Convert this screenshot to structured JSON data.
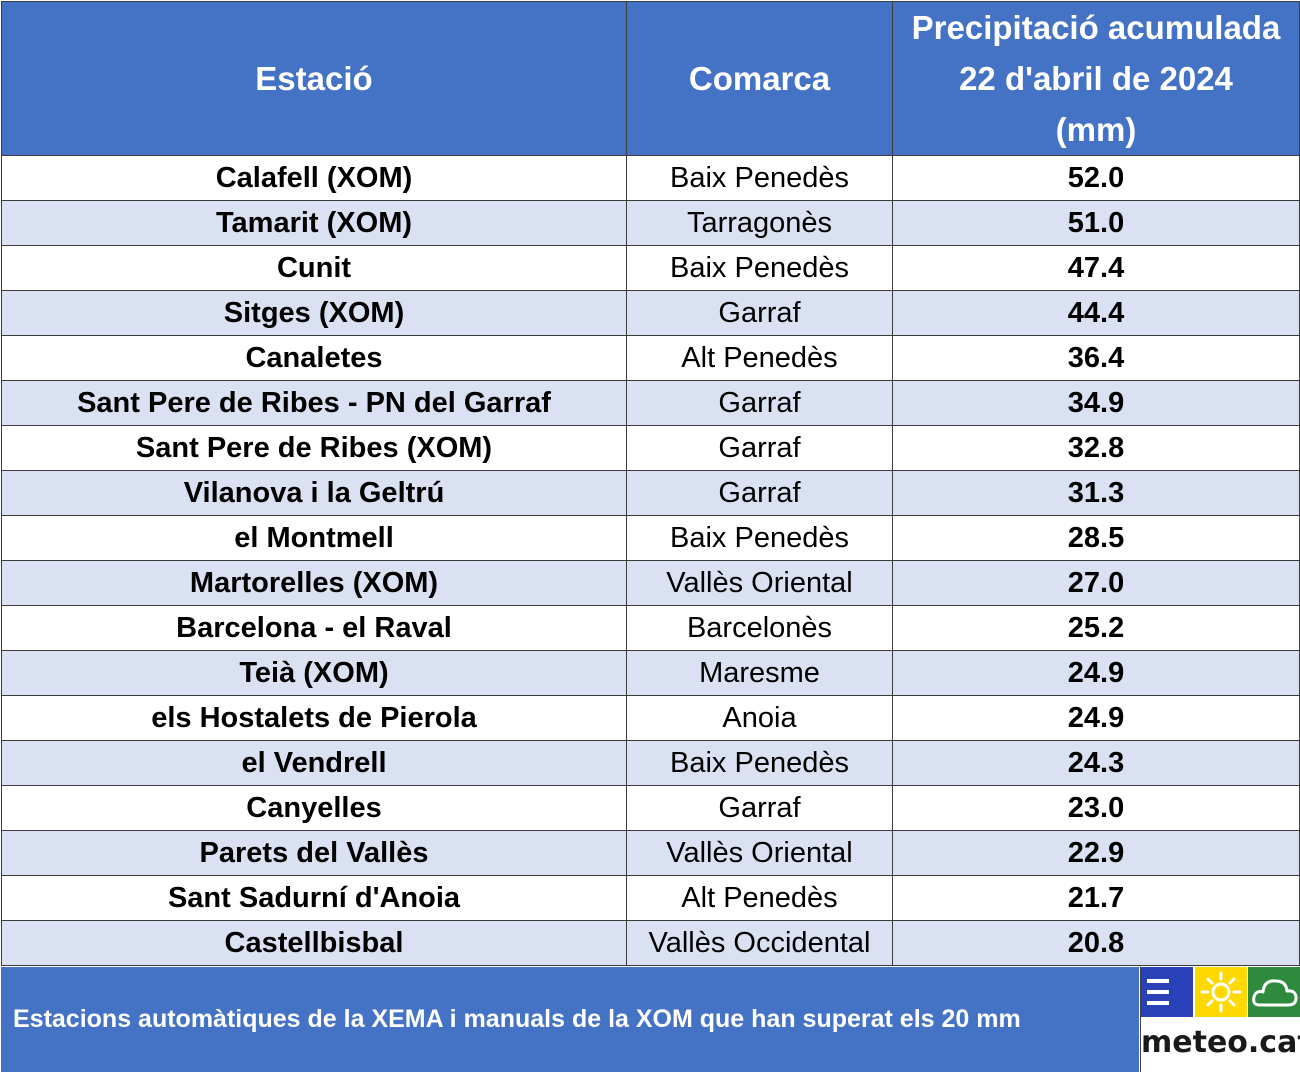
{
  "headers": {
    "station": "Estació",
    "comarca": "Comarca",
    "precip_lines": [
      "Precipitació acumulada",
      "22 d'abril de 2024",
      "(mm)"
    ]
  },
  "rows": [
    {
      "station": "Calafell (XOM)",
      "comarca": "Baix Penedès",
      "value": "52.0"
    },
    {
      "station": "Tamarit (XOM)",
      "comarca": "Tarragonès",
      "value": "51.0"
    },
    {
      "station": "Cunit",
      "comarca": "Baix Penedès",
      "value": "47.4"
    },
    {
      "station": "Sitges (XOM)",
      "comarca": "Garraf",
      "value": "44.4"
    },
    {
      "station": "Canaletes",
      "comarca": "Alt Penedès",
      "value": "36.4"
    },
    {
      "station": "Sant Pere de Ribes - PN del Garraf",
      "comarca": "Garraf",
      "value": "34.9"
    },
    {
      "station": "Sant Pere de Ribes (XOM)",
      "comarca": "Garraf",
      "value": "32.8"
    },
    {
      "station": "Vilanova i la Geltrú",
      "comarca": "Garraf",
      "value": "31.3"
    },
    {
      "station": "el Montmell",
      "comarca": "Baix Penedès",
      "value": "28.5"
    },
    {
      "station": "Martorelles (XOM)",
      "comarca": "Vallès Oriental",
      "value": "27.0"
    },
    {
      "station": "Barcelona - el Raval",
      "comarca": "Barcelonès",
      "value": "25.2"
    },
    {
      "station": "Teià (XOM)",
      "comarca": "Maresme",
      "value": "24.9"
    },
    {
      "station": "els Hostalets de Pierola",
      "comarca": "Anoia",
      "value": "24.9"
    },
    {
      "station": "el Vendrell",
      "comarca": "Baix Penedès",
      "value": "24.3"
    },
    {
      "station": "Canyelles",
      "comarca": "Garraf",
      "value": "23.0"
    },
    {
      "station": "Parets del Vallès",
      "comarca": "Vallès Oriental",
      "value": "22.9"
    },
    {
      "station": "Sant Sadurní d'Anoia",
      "comarca": "Alt Penedès",
      "value": "21.7"
    },
    {
      "station": "Castellbisbal",
      "comarca": "Vallès Occidental",
      "value": "20.8"
    }
  ],
  "footer": {
    "text": "Estacions automàtiques de la XEMA i manuals de la XOM que han superat els 20 mm"
  },
  "logo": {
    "text": "meteo.cat",
    "icons": [
      "menu-icon",
      "sun-icon",
      "cloud-icon"
    ],
    "colors": {
      "menu": "#2a41b8",
      "sun": "#ffd900",
      "cloud": "#2e8b3e"
    }
  },
  "colors": {
    "header_bg": "#4472c4",
    "band_bg": "#d9e1f2",
    "header_text": "#ffffff"
  }
}
